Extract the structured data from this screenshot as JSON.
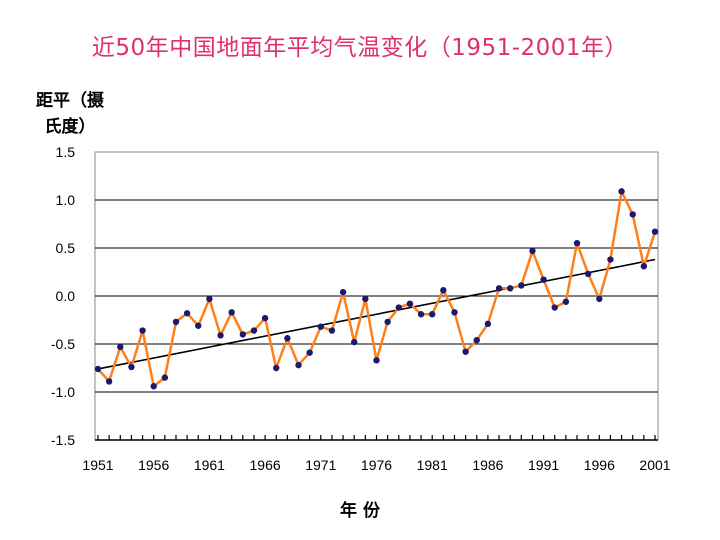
{
  "chart_data": {
    "type": "line",
    "title": "近50年中国地面年平均气温变化（1951-2001年）",
    "ylabel": "距平（摄氏度）",
    "xlabel": "年 份",
    "xlim": [
      1951,
      2001
    ],
    "ylim": [
      -1.5,
      1.5
    ],
    "xticks": [
      "1951",
      "1956",
      "1961",
      "1966",
      "1971",
      "1976",
      "1981",
      "1986",
      "1991",
      "1996",
      "2001"
    ],
    "yticks": [
      "1.5",
      "1.0",
      "0.5",
      "0.0",
      "-0.5",
      "-1.0",
      "-1.5"
    ],
    "grid": "horizontal",
    "series": [
      {
        "color": "#ff7f1a",
        "marker_color": "#1a1a6e",
        "x": [
          1951,
          1952,
          1953,
          1954,
          1955,
          1956,
          1957,
          1958,
          1959,
          1960,
          1961,
          1962,
          1963,
          1964,
          1965,
          1966,
          1967,
          1968,
          1969,
          1970,
          1971,
          1972,
          1973,
          1974,
          1975,
          1976,
          1977,
          1978,
          1979,
          1980,
          1981,
          1982,
          1983,
          1984,
          1985,
          1986,
          1987,
          1988,
          1989,
          1990,
          1991,
          1992,
          1993,
          1994,
          1995,
          1996,
          1997,
          1998,
          1999,
          2000,
          2001
        ],
        "values": [
          -0.76,
          -0.89,
          -0.53,
          -0.74,
          -0.36,
          -0.94,
          -0.85,
          -0.27,
          -0.18,
          -0.31,
          -0.03,
          -0.41,
          -0.17,
          -0.4,
          -0.36,
          -0.23,
          -0.75,
          -0.44,
          -0.72,
          -0.59,
          -0.32,
          -0.36,
          0.04,
          -0.48,
          -0.03,
          -0.67,
          -0.27,
          -0.12,
          -0.08,
          -0.19,
          -0.19,
          0.06,
          -0.17,
          -0.58,
          -0.46,
          -0.29,
          0.08,
          0.08,
          0.11,
          0.47,
          0.17,
          -0.12,
          -0.06,
          0.55,
          0.23,
          -0.03,
          0.38,
          1.09,
          0.85,
          0.31,
          0.67
        ]
      }
    ],
    "trend": {
      "color": "#000000",
      "x": [
        1951,
        2001
      ],
      "values": [
        -0.76,
        0.38
      ]
    }
  }
}
